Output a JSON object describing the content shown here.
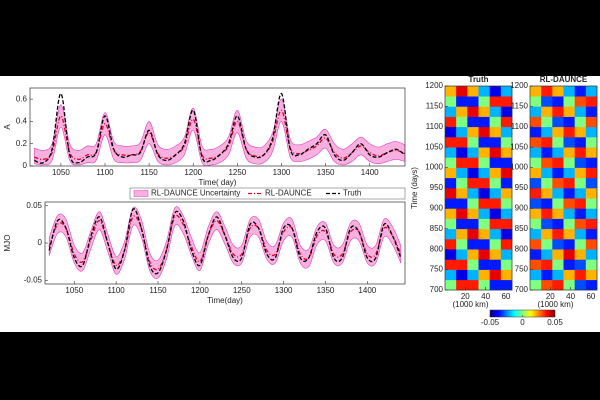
{
  "chart_data": [
    {
      "type": "line",
      "xlabel": "Time( day)",
      "ylabel": "A",
      "x": [
        1020,
        1030,
        1040,
        1050,
        1060,
        1070,
        1080,
        1090,
        1100,
        1110,
        1120,
        1130,
        1140,
        1150,
        1160,
        1170,
        1180,
        1190,
        1200,
        1210,
        1220,
        1230,
        1240,
        1250,
        1260,
        1270,
        1280,
        1290,
        1300,
        1310,
        1320,
        1330,
        1340,
        1350,
        1360,
        1370,
        1380,
        1390,
        1400,
        1410,
        1420,
        1430,
        1440
      ],
      "xlim": [
        1015,
        1440
      ],
      "xticks": [
        1050,
        1100,
        1150,
        1200,
        1250,
        1300,
        1350,
        1400
      ],
      "ylim": [
        0,
        0.7
      ],
      "yticks": [
        0,
        0.2,
        0.4,
        0.6
      ],
      "legend": "below",
      "series": [
        {
          "name": "RL-DAUNCE Uncertainty",
          "color": "#f7b0df",
          "edge": "#e040c0",
          "lower": [
            0.02,
            0.01,
            0.05,
            0.35,
            0.05,
            0.01,
            0.03,
            0.05,
            0.28,
            0.06,
            0.03,
            0.03,
            0.05,
            0.2,
            0.04,
            0.01,
            0.03,
            0.1,
            0.32,
            0.03,
            0.01,
            0.03,
            0.1,
            0.3,
            0.07,
            0.02,
            0.03,
            0.13,
            0.4,
            0.08,
            0.04,
            0.06,
            0.1,
            0.16,
            0.04,
            0.01,
            0.04,
            0.1,
            0.04,
            0.02,
            0.04,
            0.06,
            0.04
          ],
          "upper": [
            0.16,
            0.14,
            0.2,
            0.55,
            0.2,
            0.14,
            0.18,
            0.2,
            0.48,
            0.22,
            0.18,
            0.18,
            0.21,
            0.4,
            0.19,
            0.15,
            0.18,
            0.26,
            0.52,
            0.18,
            0.15,
            0.18,
            0.26,
            0.5,
            0.23,
            0.17,
            0.18,
            0.3,
            0.6,
            0.24,
            0.19,
            0.22,
            0.26,
            0.33,
            0.2,
            0.15,
            0.2,
            0.26,
            0.2,
            0.17,
            0.2,
            0.22,
            0.19
          ]
        },
        {
          "name": "RL-DAUNCE",
          "color": "#e0002a",
          "dash": "4 2 1 2",
          "values": [
            0.08,
            0.06,
            0.12,
            0.45,
            0.12,
            0.06,
            0.1,
            0.12,
            0.38,
            0.14,
            0.1,
            0.1,
            0.13,
            0.3,
            0.11,
            0.07,
            0.1,
            0.18,
            0.42,
            0.1,
            0.07,
            0.1,
            0.18,
            0.4,
            0.15,
            0.09,
            0.1,
            0.22,
            0.5,
            0.16,
            0.11,
            0.14,
            0.18,
            0.25,
            0.12,
            0.07,
            0.12,
            0.18,
            0.12,
            0.09,
            0.12,
            0.14,
            0.11
          ]
        },
        {
          "name": "Truth",
          "color": "#000000",
          "dash": "4 2",
          "values": [
            0.05,
            0.03,
            0.15,
            0.65,
            0.1,
            0.03,
            0.08,
            0.12,
            0.45,
            0.15,
            0.08,
            0.1,
            0.12,
            0.32,
            0.1,
            0.05,
            0.1,
            0.2,
            0.5,
            0.08,
            0.05,
            0.1,
            0.2,
            0.45,
            0.15,
            0.08,
            0.1,
            0.25,
            0.65,
            0.15,
            0.1,
            0.15,
            0.2,
            0.28,
            0.1,
            0.05,
            0.12,
            0.2,
            0.1,
            0.08,
            0.12,
            0.15,
            0.1
          ]
        }
      ]
    },
    {
      "type": "line",
      "xlabel": "Time(day)",
      "ylabel": "MJO",
      "x": [
        1020,
        1030,
        1040,
        1050,
        1060,
        1070,
        1080,
        1090,
        1100,
        1110,
        1120,
        1130,
        1140,
        1150,
        1160,
        1170,
        1180,
        1190,
        1200,
        1210,
        1220,
        1230,
        1240,
        1250,
        1260,
        1270,
        1280,
        1290,
        1300,
        1310,
        1320,
        1330,
        1340,
        1350,
        1360,
        1370,
        1380,
        1390,
        1400,
        1410,
        1420,
        1430,
        1440
      ],
      "xlim": [
        1015,
        1445
      ],
      "xticks": [
        1050,
        1100,
        1150,
        1200,
        1250,
        1300,
        1350,
        1400
      ],
      "ylim": [
        -0.055,
        0.055
      ],
      "yticks": [
        -0.05,
        0,
        0.05
      ],
      "series": [
        {
          "color": "#f7b0df",
          "edge": "#e040c0",
          "lower": [
            -0.017,
            0.013,
            0.008,
            -0.027,
            -0.037,
            -0.007,
            0.018,
            -0.012,
            -0.042,
            -0.022,
            0.023,
            0.008,
            -0.037,
            -0.047,
            -0.022,
            0.023,
            0.013,
            -0.017,
            -0.037,
            -0.002,
            0.018,
            -0.002,
            -0.027,
            -0.027,
            0.008,
            0.008,
            -0.022,
            -0.027,
            0.003,
            0.008,
            -0.027,
            -0.032,
            -0.002,
            0.003,
            -0.027,
            -0.027,
            0.003,
            0.003,
            -0.027,
            -0.027,
            0.008,
            -0.002,
            -0.027
          ],
          "upper": [
            0.007,
            0.037,
            0.032,
            -0.003,
            -0.013,
            0.017,
            0.042,
            0.012,
            -0.018,
            0.002,
            0.047,
            0.032,
            -0.013,
            -0.023,
            0.002,
            0.047,
            0.037,
            0.007,
            -0.013,
            0.022,
            0.042,
            0.022,
            -0.003,
            -0.003,
            0.032,
            0.032,
            0.002,
            -0.003,
            0.027,
            0.032,
            -0.003,
            -0.008,
            0.022,
            0.027,
            -0.003,
            -0.003,
            0.027,
            0.027,
            -0.003,
            -0.003,
            0.032,
            0.022,
            -0.003
          ]
        },
        {
          "color": "#e0002a",
          "dash": "4 2 1 2",
          "values": [
            -0.005,
            0.025,
            0.02,
            -0.015,
            -0.025,
            0.005,
            0.03,
            0.0,
            -0.03,
            -0.01,
            0.035,
            0.02,
            -0.025,
            -0.035,
            -0.01,
            0.035,
            0.025,
            -0.005,
            -0.025,
            0.01,
            0.03,
            0.01,
            -0.015,
            -0.015,
            0.02,
            0.02,
            -0.01,
            -0.015,
            0.015,
            0.02,
            -0.015,
            -0.02,
            0.01,
            0.015,
            -0.015,
            -0.015,
            0.015,
            0.015,
            -0.015,
            -0.015,
            0.02,
            0.01,
            -0.015
          ]
        },
        {
          "color": "#000000",
          "dash": "4 2",
          "values": [
            -0.01,
            0.03,
            0.02,
            -0.02,
            -0.03,
            0.01,
            0.035,
            0.0,
            -0.035,
            -0.01,
            0.045,
            0.02,
            -0.03,
            -0.04,
            -0.01,
            0.04,
            0.03,
            -0.01,
            -0.03,
            0.01,
            0.035,
            0.01,
            -0.02,
            -0.02,
            0.025,
            0.02,
            -0.015,
            -0.02,
            0.02,
            0.02,
            -0.02,
            -0.02,
            0.015,
            0.02,
            -0.02,
            -0.02,
            0.02,
            0.015,
            -0.02,
            -0.02,
            0.025,
            0.01,
            -0.02
          ]
        }
      ]
    },
    {
      "type": "heatmap",
      "xlabel": "(1000 km)",
      "ylabel": "Time (days)",
      "x": [
        5.5,
        16.5,
        27.5,
        38.5,
        49.5,
        60.5
      ],
      "y": [
        712.5,
        737.5,
        762.5,
        787.5,
        812.5,
        837.5,
        862.5,
        887.5,
        912.5,
        937.5,
        962.5,
        987.5,
        1012.5,
        1037.5,
        1062.5,
        1087.5,
        1112.5,
        1137.5,
        1162.5,
        1187.5
      ],
      "xlim": [
        0,
        66
      ],
      "xticks": [
        20,
        40,
        60
      ],
      "ylim": [
        700,
        1200
      ],
      "yticks": [
        700,
        750,
        800,
        850,
        900,
        950,
        1000,
        1050,
        1100,
        1150,
        1200
      ],
      "clim": [
        -0.05,
        0.05
      ],
      "cticks": [
        -0.05,
        0,
        0.05
      ],
      "panels": [
        {
          "title": "Truth",
          "z": [
            [
              0,
              0.035,
              0.035,
              0,
              -0.035,
              -0.035
            ],
            [
              -0.02,
              -0.04,
              -0.02,
              0.02,
              0.04,
              0.02
            ],
            [
              0.035,
              0.035,
              0,
              -0.035,
              -0.035,
              0
            ],
            [
              -0.04,
              -0.02,
              0.02,
              0.04,
              0.02,
              -0.02
            ],
            [
              0.035,
              0,
              -0.035,
              -0.035,
              0,
              0.035
            ],
            [
              -0.02,
              0.02,
              0.04,
              0.02,
              -0.02,
              -0.04
            ],
            [
              0,
              -0.035,
              -0.035,
              0,
              0.035,
              0.035
            ],
            [
              0.02,
              0.04,
              0.02,
              -0.02,
              -0.04,
              -0.02
            ],
            [
              -0.035,
              -0.035,
              0,
              0.035,
              0.035,
              0
            ],
            [
              0.04,
              0.02,
              -0.02,
              -0.04,
              -0.02,
              0.02
            ],
            [
              -0.035,
              0,
              0.035,
              0.035,
              0,
              -0.035
            ],
            [
              0.02,
              -0.02,
              -0.04,
              -0.02,
              0.02,
              0.04
            ],
            [
              0,
              0.035,
              0.035,
              0,
              -0.035,
              -0.035
            ],
            [
              -0.02,
              -0.04,
              -0.02,
              0.02,
              0.04,
              0.02
            ],
            [
              0.035,
              0.035,
              0,
              -0.035,
              -0.035,
              0
            ],
            [
              -0.04,
              -0.02,
              0.02,
              0.04,
              0.02,
              -0.02
            ],
            [
              0.035,
              0,
              -0.035,
              -0.035,
              0,
              0.035
            ],
            [
              -0.02,
              0.02,
              0.04,
              0.02,
              -0.02,
              -0.04
            ],
            [
              0,
              -0.035,
              -0.035,
              0,
              0.035,
              0.035
            ],
            [
              0.02,
              0.04,
              0.02,
              -0.02,
              -0.04,
              -0.02
            ]
          ]
        },
        {
          "title": "RL-DAUNCE",
          "z": [
            [
              0,
              0.03,
              0.035,
              0,
              -0.03,
              -0.035
            ],
            [
              -0.02,
              -0.035,
              -0.02,
              0.02,
              0.035,
              0.02
            ],
            [
              0.03,
              0.035,
              0,
              -0.035,
              -0.03,
              0
            ],
            [
              -0.035,
              -0.02,
              0.02,
              0.04,
              0.02,
              -0.02
            ],
            [
              0.03,
              0,
              -0.03,
              -0.035,
              0,
              0.03
            ],
            [
              -0.02,
              0.02,
              0.035,
              0.02,
              -0.02,
              -0.035
            ],
            [
              0,
              -0.03,
              -0.035,
              0,
              0.03,
              0.035
            ],
            [
              0.02,
              0.035,
              0.02,
              -0.02,
              -0.035,
              -0.02
            ],
            [
              -0.03,
              -0.035,
              0,
              0.03,
              0.035,
              0
            ],
            [
              0.035,
              0.02,
              -0.02,
              -0.035,
              -0.02,
              0.02
            ],
            [
              -0.03,
              0,
              0.03,
              0.035,
              0,
              -0.03
            ],
            [
              0.02,
              -0.02,
              -0.035,
              -0.02,
              0.02,
              0.035
            ],
            [
              0,
              0.03,
              0.035,
              0,
              -0.03,
              -0.035
            ],
            [
              -0.02,
              -0.035,
              -0.02,
              0.02,
              0.035,
              0.02
            ],
            [
              0.03,
              0.035,
              0,
              -0.03,
              -0.035,
              0
            ],
            [
              -0.035,
              -0.02,
              0.02,
              0.035,
              0.02,
              -0.02
            ],
            [
              0.03,
              0,
              -0.03,
              -0.035,
              0,
              0.03
            ],
            [
              -0.02,
              0.02,
              0.035,
              0.02,
              -0.02,
              -0.035
            ],
            [
              0,
              -0.03,
              -0.035,
              0,
              0.03,
              0.035
            ],
            [
              0.02,
              0.035,
              0.02,
              -0.02,
              -0.035,
              -0.02
            ]
          ]
        }
      ]
    }
  ]
}
